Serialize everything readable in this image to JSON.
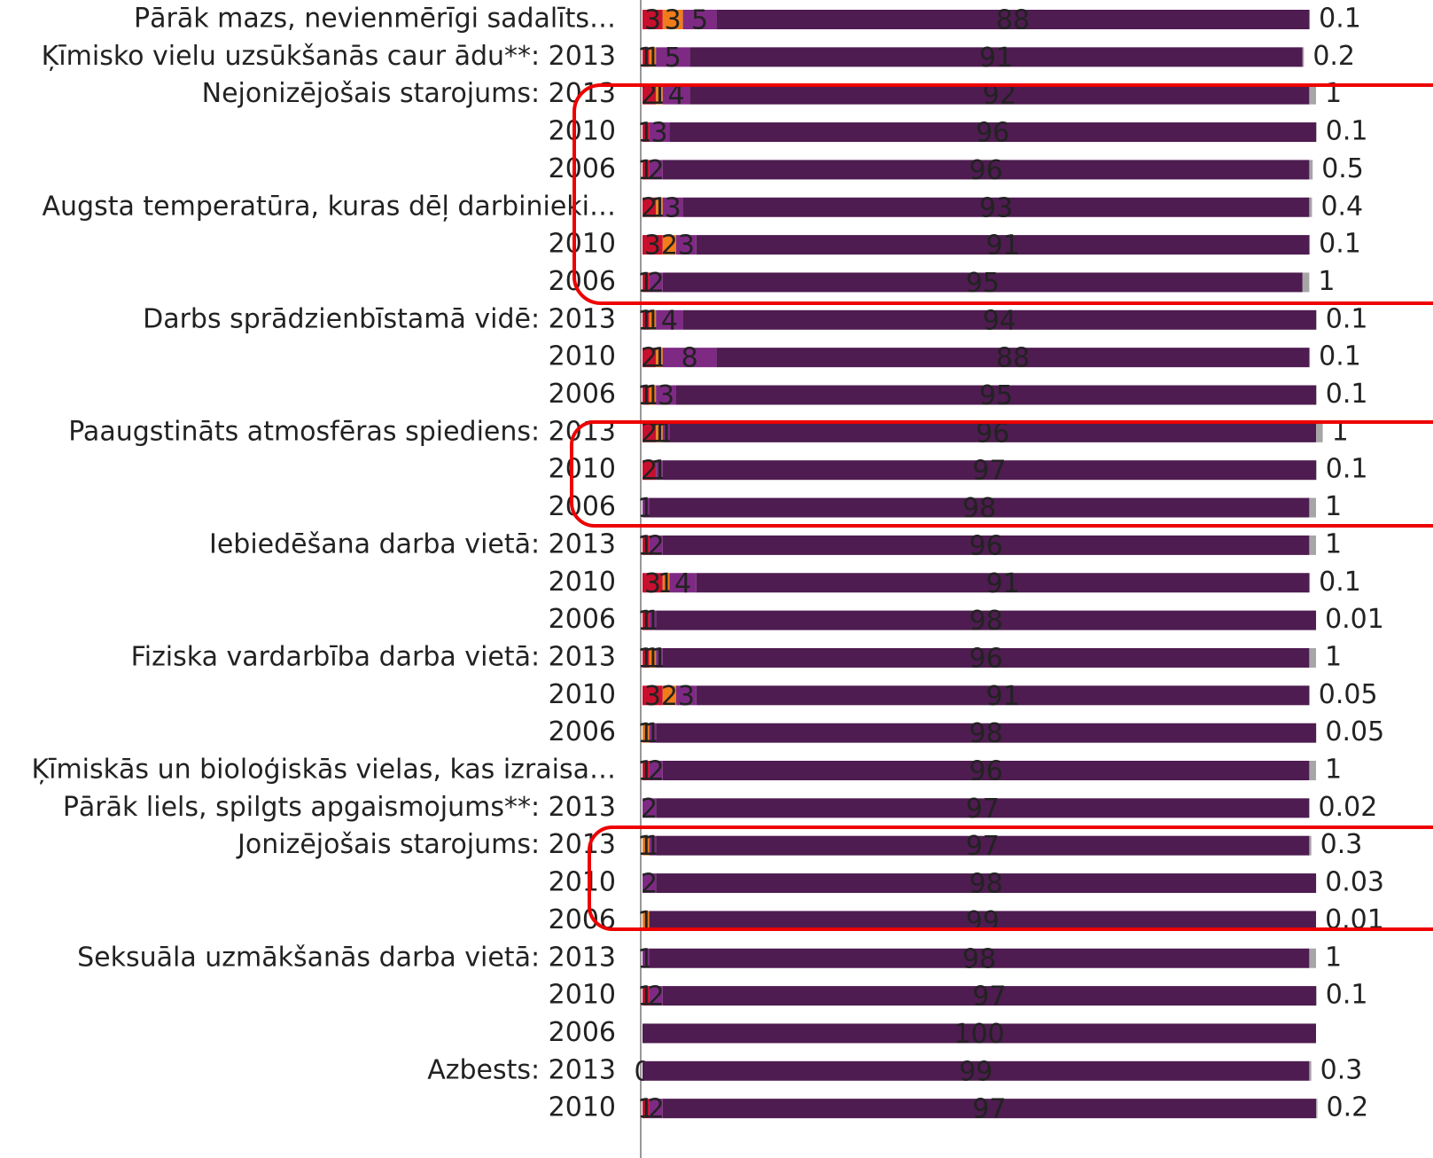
{
  "chart_data": {
    "type": "stacked-bar-horizontal",
    "categories": [
      "Pārāk mazs, nevienmērīgi sadalīts…",
      "Ķīmisko vielu uzsūkšanās caur ādu**: 2013",
      "Nejonizējošais starojums: 2013",
      "2010",
      "2006",
      "Augsta temperatūra, kuras dēļ darbinieki…",
      "2010",
      "2006",
      "Darbs sprādzienbīstamā vidē: 2013",
      "2010",
      "2006",
      "Paaugstināts atmosfēras spiediens: 2013",
      "2010",
      "2006",
      "Iebiedēšana darba vietā: 2013",
      "2010",
      "2006",
      "Fiziska vardarbība darba vietā: 2013",
      "2010",
      "2006",
      "Ķīmiskās un bioloģiskās vielas, kas izraisa…",
      "Pārāk liels, spilgts apgaismojums**: 2013",
      "Jonizējošais starojums: 2013",
      "2010",
      "2006",
      "Seksuāla uzmākšanās darba vietā: 2013",
      "2010",
      "2006",
      "Azbests: 2013",
      "2010"
    ],
    "series": [
      {
        "color": "#c8102e",
        "values": [
          3,
          1,
          2,
          1,
          1,
          2,
          3,
          1,
          1,
          2,
          1,
          2,
          2,
          null,
          1,
          3,
          1,
          1,
          3,
          null,
          1,
          null,
          null,
          null,
          null,
          null,
          1,
          null,
          null,
          1
        ]
      },
      {
        "color": "#f07d1a",
        "values": [
          3,
          1,
          1,
          null,
          null,
          1,
          2,
          null,
          1,
          1,
          1,
          1,
          null,
          null,
          null,
          1,
          null,
          1,
          2,
          1,
          null,
          null,
          1,
          null,
          1,
          null,
          null,
          null,
          null,
          null
        ]
      },
      {
        "color": "#7e2a84",
        "values": [
          5,
          5,
          4,
          3,
          2,
          3,
          3,
          2,
          4,
          8,
          3,
          1,
          1,
          1,
          2,
          4,
          1,
          1,
          3,
          1,
          2,
          2,
          1,
          2,
          null,
          1,
          2,
          null,
          0,
          2
        ]
      },
      {
        "color": "#4e1c50",
        "values": [
          88,
          91,
          92,
          96,
          96,
          93,
          91,
          95,
          94,
          88,
          95,
          96,
          97,
          98,
          96,
          91,
          98,
          96,
          91,
          98,
          96,
          97,
          97,
          98,
          99,
          98,
          97,
          100,
          99,
          97
        ]
      },
      {
        "color": "#a6a6a6",
        "values": [
          0.1,
          0.2,
          1,
          0.1,
          0.5,
          0.4,
          0.1,
          1,
          0.1,
          0.1,
          0.1,
          1,
          0.1,
          1,
          1,
          0.1,
          0.01,
          1,
          0.05,
          0.05,
          1,
          0.02,
          0.3,
          0.03,
          0.01,
          1,
          0.1,
          null,
          0.3,
          0.2
        ]
      }
    ],
    "xlim": [
      0,
      100
    ]
  }
}
